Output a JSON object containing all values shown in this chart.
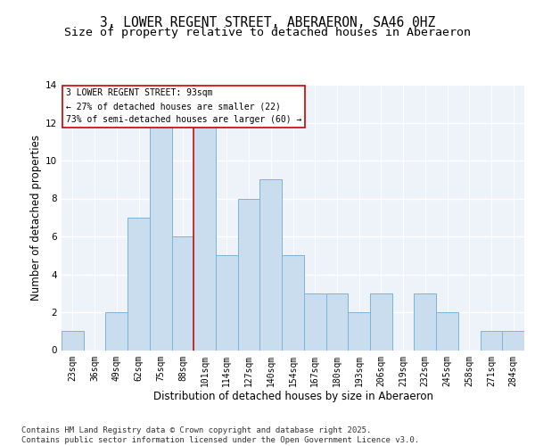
{
  "title_line1": "3, LOWER REGENT STREET, ABERAERON, SA46 0HZ",
  "title_line2": "Size of property relative to detached houses in Aberaeron",
  "xlabel": "Distribution of detached houses by size in Aberaeron",
  "ylabel": "Number of detached properties",
  "categories": [
    "23sqm",
    "36sqm",
    "49sqm",
    "62sqm",
    "75sqm",
    "88sqm",
    "101sqm",
    "114sqm",
    "127sqm",
    "140sqm",
    "154sqm",
    "167sqm",
    "180sqm",
    "193sqm",
    "206sqm",
    "219sqm",
    "232sqm",
    "245sqm",
    "258sqm",
    "271sqm",
    "284sqm"
  ],
  "values": [
    1,
    0,
    2,
    7,
    12,
    6,
    12,
    5,
    8,
    9,
    5,
    3,
    3,
    2,
    3,
    0,
    3,
    2,
    0,
    1,
    1
  ],
  "bar_color": "#c9ddef",
  "bar_edge_color": "#7ab4d8",
  "bar_linewidth": 0.7,
  "red_line_x": 5.5,
  "red_line_color": "#cc0000",
  "ylim": [
    0,
    14
  ],
  "yticks": [
    0,
    2,
    4,
    6,
    8,
    10,
    12,
    14
  ],
  "annotation_text": "3 LOWER REGENT STREET: 93sqm\n← 27% of detached houses are smaller (22)\n73% of semi-detached houses are larger (60) →",
  "annotation_box_facecolor": "white",
  "annotation_box_edgecolor": "#cc0000",
  "footer_text": "Contains HM Land Registry data © Crown copyright and database right 2025.\nContains public sector information licensed under the Open Government Licence v3.0.",
  "bg_color": "#eef2f9",
  "grid_color": "white",
  "title_fontsize": 10.5,
  "subtitle_fontsize": 9.5,
  "ylabel_fontsize": 8.5,
  "xlabel_fontsize": 8.5,
  "tick_fontsize": 7,
  "annot_fontsize": 7,
  "footer_fontsize": 6.5
}
